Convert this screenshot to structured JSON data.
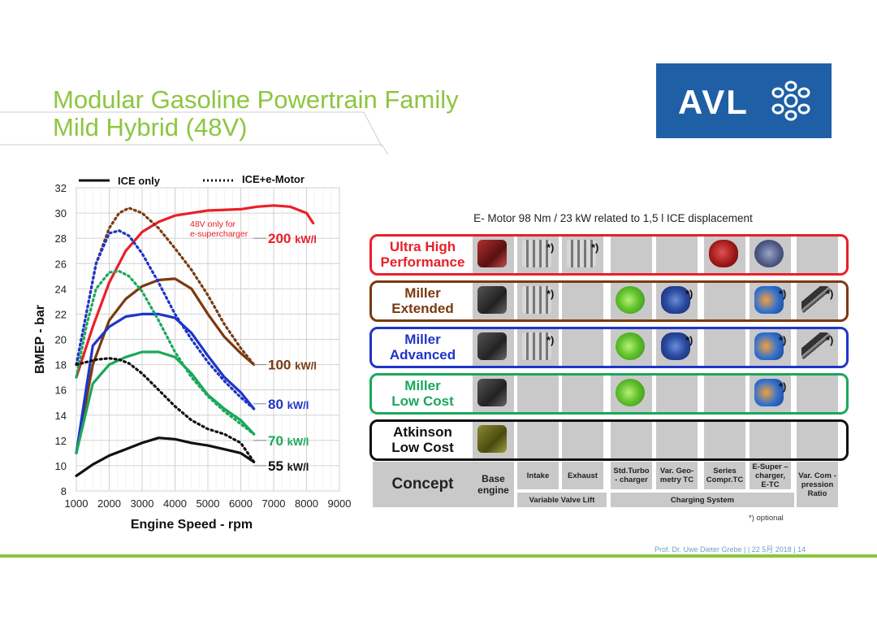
{
  "slide": {
    "title_line1": "Modular Gasoline Powertrain Family",
    "title_line2": "Mild Hybrid (48V)",
    "logo_text": "AVL",
    "footer": "Prof. Dr. Uwe Dieter Grebe |  | 22 5月 2018 | 14",
    "colors": {
      "title": "#8cc63f",
      "logo_bg": "#1f5fa5",
      "footer": "#6aa0cc"
    }
  },
  "chart_data": {
    "type": "line",
    "title": "",
    "xlabel": "Engine Speed - rpm",
    "ylabel": "BMEP - bar",
    "xlim": [
      1000,
      9000
    ],
    "ylim": [
      8,
      32
    ],
    "x_ticks": [
      1000,
      2000,
      3000,
      4000,
      5000,
      6000,
      7000,
      8000,
      9000
    ],
    "y_ticks": [
      8,
      10,
      12,
      14,
      16,
      18,
      20,
      22,
      24,
      26,
      28,
      30,
      32
    ],
    "grid": true,
    "legend": [
      {
        "label": "ICE only",
        "style": "solid"
      },
      {
        "label": "ICE+e-Motor",
        "style": "dotted"
      }
    ],
    "annotation": {
      "line1": "48V only for",
      "line2": "e-supercharger",
      "color": "#e8202a"
    },
    "series": [
      {
        "name": "200",
        "unit": "kW/l",
        "color": "#e8202a",
        "style": "solid",
        "x": [
          1000,
          1500,
          2000,
          2500,
          3000,
          3500,
          4000,
          5000,
          6000,
          6500,
          7000,
          7500,
          8000,
          8200
        ],
        "y": [
          17,
          21,
          24.5,
          27,
          28.5,
          29.3,
          29.8,
          30.2,
          30.3,
          30.5,
          30.6,
          30.5,
          30,
          29.2
        ]
      },
      {
        "name": "100",
        "unit": "kW/l",
        "color": "#7a3a10",
        "style": "solid",
        "x": [
          1000,
          1500,
          2000,
          2500,
          3000,
          3500,
          4000,
          4500,
          5000,
          5500,
          6000,
          6400
        ],
        "y": [
          11,
          18,
          21.5,
          23.2,
          24.2,
          24.7,
          24.8,
          24,
          22,
          20.2,
          18.9,
          18
        ]
      },
      {
        "name": "100",
        "unit": "kW/l",
        "color": "#7a3a10",
        "style": "dotted",
        "x": [
          1000,
          1300,
          1600,
          2000,
          2300,
          2600,
          3000,
          3500,
          4000,
          4500,
          5000,
          5500,
          6000,
          6400
        ],
        "y": [
          18,
          22,
          26,
          28.8,
          30,
          30.4,
          30,
          28.8,
          27.2,
          25.5,
          23.5,
          21.2,
          19.3,
          18
        ]
      },
      {
        "name": "80",
        "unit": "kW/l",
        "color": "#1f35c8",
        "style": "solid",
        "x": [
          1000,
          1500,
          2000,
          2500,
          3000,
          3500,
          4000,
          4500,
          5000,
          5500,
          6000,
          6400
        ],
        "y": [
          11,
          19.5,
          21,
          21.8,
          22,
          22,
          21.7,
          20.5,
          18.7,
          17,
          15.8,
          14.5
        ]
      },
      {
        "name": "80",
        "unit": "kW/l",
        "color": "#1f35c8",
        "style": "dotted",
        "x": [
          1000,
          1300,
          1600,
          2000,
          2300,
          2600,
          3000,
          3500,
          4000,
          4500,
          5000,
          5500,
          6000,
          6400
        ],
        "y": [
          18,
          22,
          26,
          28.4,
          28.6,
          28.2,
          26.8,
          24.5,
          22,
          20,
          18.2,
          16.7,
          15.4,
          14.5
        ]
      },
      {
        "name": "70",
        "unit": "kW/l",
        "color": "#1aa85a",
        "style": "solid",
        "x": [
          1000,
          1500,
          2000,
          2500,
          3000,
          3500,
          4000,
          4500,
          5000,
          5500,
          6000,
          6400
        ],
        "y": [
          11,
          16.5,
          18,
          18.6,
          19,
          19,
          18.6,
          17.3,
          15.6,
          14.5,
          13.6,
          12.5
        ]
      },
      {
        "name": "70",
        "unit": "kW/l",
        "color": "#1aa85a",
        "style": "dotted",
        "x": [
          1000,
          1300,
          1600,
          2000,
          2300,
          2600,
          3000,
          3500,
          4000,
          4500,
          5000,
          5500,
          6000,
          6400
        ],
        "y": [
          17,
          21,
          24,
          25.3,
          25.4,
          25,
          23.8,
          21.5,
          19,
          17,
          15.5,
          14.3,
          13.3,
          12.5
        ]
      },
      {
        "name": "55",
        "unit": "kW/l",
        "color": "#111111",
        "style": "solid",
        "x": [
          1000,
          1500,
          2000,
          2500,
          3000,
          3500,
          4000,
          4500,
          5000,
          5500,
          6000,
          6400
        ],
        "y": [
          9.2,
          10.1,
          10.8,
          11.3,
          11.8,
          12.2,
          12.1,
          11.8,
          11.6,
          11.3,
          11,
          10.3
        ]
      },
      {
        "name": "55",
        "unit": "kW/l",
        "color": "#111111",
        "style": "dotted",
        "x": [
          1000,
          1300,
          1600,
          2000,
          2300,
          2600,
          3000,
          3500,
          4000,
          4500,
          5000,
          5500,
          6000,
          6400
        ],
        "y": [
          18,
          18.2,
          18.4,
          18.5,
          18.4,
          18.1,
          17.3,
          16,
          14.7,
          13.6,
          12.9,
          12.5,
          11.8,
          10.3
        ]
      }
    ],
    "right_labels": [
      {
        "value": "200",
        "unit": "kW/l",
        "color": "#e8202a",
        "y": 28
      },
      {
        "value": "100",
        "unit": "kW/l",
        "color": "#7a3a10",
        "y": 18
      },
      {
        "value": "80",
        "unit": "kW/l",
        "color": "#1f35c8",
        "y": 14.9
      },
      {
        "value": "70",
        "unit": "kW/l",
        "color": "#1aa85a",
        "y": 12
      },
      {
        "value": "55",
        "unit": "kW/l",
        "color": "#111111",
        "y": 10
      }
    ]
  },
  "matrix": {
    "motor_title": "E- Motor 98 Nm / 23 kW related to 1,5 l ICE displacement",
    "optional_mark": "*)",
    "footnote": "*)  optional",
    "rows": [
      {
        "line1": "Ultra High",
        "line2": "Performance",
        "color": "#e8202a",
        "cells": [
          "engine-red",
          "valve*",
          "valve*",
          "",
          "",
          "superred",
          "esc",
          ""
        ]
      },
      {
        "line1": "Miller",
        "line2": "Extended",
        "color": "#7a3a10",
        "cells": [
          "engine",
          "valve*",
          "",
          "turbo",
          "series*",
          "",
          "etc*",
          "rod*"
        ]
      },
      {
        "line1": "Miller",
        "line2": "Advanced",
        "color": "#1f35c8",
        "cells": [
          "engine",
          "valve*",
          "",
          "turbo",
          "series*",
          "",
          "etc*",
          "rod*"
        ]
      },
      {
        "line1": "Miller",
        "line2": "Low Cost",
        "color": "#1aa85a",
        "cells": [
          "engine",
          "",
          "",
          "turbo",
          "",
          "",
          "etc*",
          ""
        ]
      },
      {
        "line1": "Atkinson",
        "line2": "Low Cost",
        "color": "#111111",
        "cells": [
          "engine-olive",
          "",
          "",
          "",
          "",
          "",
          "",
          ""
        ]
      }
    ],
    "concept_label": "Concept",
    "columns": [
      {
        "line1": "Base",
        "line2": "engine",
        "line3": ""
      },
      {
        "line1": "Intake",
        "line2": "",
        "line3": ""
      },
      {
        "line1": "Exhaust",
        "line2": "",
        "line3": ""
      },
      {
        "line1": "Std.Turbo",
        "line2": "- charger",
        "line3": ""
      },
      {
        "line1": "Var. Geo-",
        "line2": "metry TC",
        "line3": ""
      },
      {
        "line1": "Series",
        "line2": "Compr.TC",
        "line3": ""
      },
      {
        "line1": "E-Super –",
        "line2": "charger,",
        "line3": "E-TC"
      },
      {
        "line1": "Var. Com -",
        "line2": "pression",
        "line3": "Ratio"
      }
    ],
    "groups": {
      "valve": "Variable Valve Lift",
      "charging": "Charging System"
    }
  }
}
